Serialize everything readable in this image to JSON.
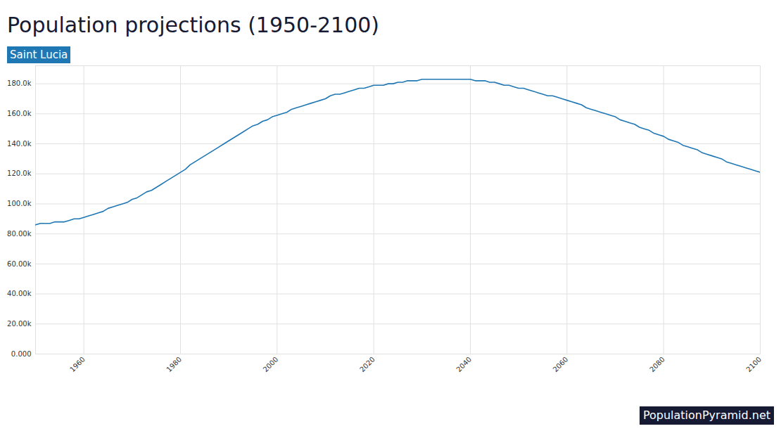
{
  "chart_data": {
    "type": "line",
    "title": "Population projections (1950-2100)",
    "subtitle": "Saint Lucia",
    "caption": "PopulationPyramid.net",
    "x": [
      1950,
      1951,
      1952,
      1953,
      1954,
      1955,
      1956,
      1957,
      1958,
      1959,
      1960,
      1961,
      1962,
      1963,
      1964,
      1965,
      1966,
      1967,
      1968,
      1969,
      1970,
      1971,
      1972,
      1973,
      1974,
      1975,
      1976,
      1977,
      1978,
      1979,
      1980,
      1981,
      1982,
      1983,
      1984,
      1985,
      1986,
      1987,
      1988,
      1989,
      1990,
      1991,
      1992,
      1993,
      1994,
      1995,
      1996,
      1997,
      1998,
      1999,
      2000,
      2001,
      2002,
      2003,
      2004,
      2005,
      2006,
      2007,
      2008,
      2009,
      2010,
      2011,
      2012,
      2013,
      2014,
      2015,
      2016,
      2017,
      2018,
      2019,
      2020,
      2021,
      2022,
      2023,
      2024,
      2025,
      2026,
      2027,
      2028,
      2029,
      2030,
      2031,
      2032,
      2033,
      2034,
      2035,
      2036,
      2037,
      2038,
      2039,
      2040,
      2041,
      2042,
      2043,
      2044,
      2045,
      2046,
      2047,
      2048,
      2049,
      2050,
      2051,
      2052,
      2053,
      2054,
      2055,
      2056,
      2057,
      2058,
      2059,
      2060,
      2061,
      2062,
      2063,
      2064,
      2065,
      2066,
      2067,
      2068,
      2069,
      2070,
      2071,
      2072,
      2073,
      2074,
      2075,
      2076,
      2077,
      2078,
      2079,
      2080,
      2081,
      2082,
      2083,
      2084,
      2085,
      2086,
      2087,
      2088,
      2089,
      2090,
      2091,
      2092,
      2093,
      2094,
      2095,
      2096,
      2097,
      2098,
      2099,
      2100
    ],
    "series": [
      {
        "name": "Saint Lucia",
        "color": "#1f77b4",
        "values": [
          86000,
          87000,
          87000,
          87000,
          88000,
          88000,
          88000,
          89000,
          90000,
          90000,
          91000,
          92000,
          93000,
          94000,
          95000,
          97000,
          98000,
          99000,
          100000,
          101000,
          103000,
          104000,
          106000,
          108000,
          109000,
          111000,
          113000,
          115000,
          117000,
          119000,
          121000,
          123000,
          126000,
          128000,
          130000,
          132000,
          134000,
          136000,
          138000,
          140000,
          142000,
          144000,
          146000,
          148000,
          150000,
          152000,
          153000,
          155000,
          156000,
          158000,
          159000,
          160000,
          161000,
          163000,
          164000,
          165000,
          166000,
          167000,
          168000,
          169000,
          170000,
          172000,
          173000,
          173000,
          174000,
          175000,
          176000,
          177000,
          177000,
          178000,
          179000,
          179000,
          179000,
          180000,
          180000,
          181000,
          181000,
          182000,
          182000,
          182000,
          183000,
          183000,
          183000,
          183000,
          183000,
          183000,
          183000,
          183000,
          183000,
          183000,
          183000,
          182000,
          182000,
          182000,
          181000,
          181000,
          180000,
          179000,
          179000,
          178000,
          177000,
          177000,
          176000,
          175000,
          174000,
          173000,
          172000,
          172000,
          171000,
          170000,
          169000,
          168000,
          167000,
          166000,
          164000,
          163000,
          162000,
          161000,
          160000,
          159000,
          158000,
          156000,
          155000,
          154000,
          153000,
          151000,
          150000,
          149000,
          147000,
          146000,
          145000,
          143000,
          142000,
          141000,
          139000,
          138000,
          137000,
          136000,
          134000,
          133000,
          132000,
          131000,
          130000,
          128000,
          127000,
          126000,
          125000,
          124000,
          123000,
          122000,
          121000
        ]
      }
    ],
    "xlim": [
      1950,
      2100
    ],
    "xticks": [
      1960,
      1980,
      2000,
      2020,
      2040,
      2060,
      2080,
      2100
    ],
    "ylim": [
      0,
      192000
    ],
    "yticks": [
      {
        "value": 0,
        "label": "0.000"
      },
      {
        "value": 20000,
        "label": "20.00k"
      },
      {
        "value": 40000,
        "label": "40.00k"
      },
      {
        "value": 60000,
        "label": "60.00k"
      },
      {
        "value": 80000,
        "label": "80.00k"
      },
      {
        "value": 100000,
        "label": "100.0k"
      },
      {
        "value": 120000,
        "label": "120.0k"
      },
      {
        "value": 140000,
        "label": "140.0k"
      },
      {
        "value": 160000,
        "label": "160.0k"
      },
      {
        "value": 180000,
        "label": "180.0k"
      }
    ],
    "grid": true
  }
}
